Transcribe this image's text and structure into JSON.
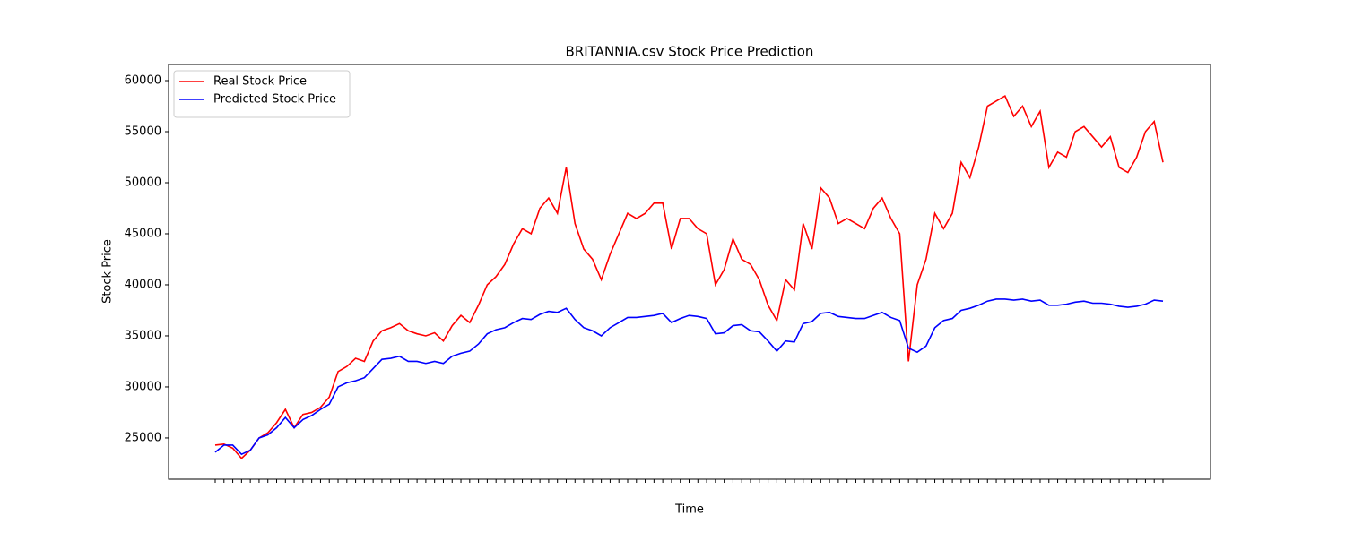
{
  "chart_data": {
    "type": "line",
    "title": "BRITANNIA.csv Stock Price Prediction",
    "x_label": "Time",
    "y_label": "Stock Price",
    "categories": [
      null,
      null,
      null,
      null,
      null,
      null,
      null,
      null,
      null,
      null,
      null,
      null,
      null,
      null,
      null,
      null,
      null,
      null,
      null,
      null,
      null,
      null,
      null,
      null,
      null,
      null,
      null,
      null,
      null,
      null,
      null,
      null,
      null,
      null,
      null,
      null,
      null,
      null,
      null,
      null,
      null,
      null,
      null,
      null,
      null,
      null,
      null,
      null,
      null,
      null,
      null,
      null,
      null,
      null,
      null,
      null,
      null,
      null,
      null,
      null,
      null,
      null,
      null,
      null,
      null,
      null,
      null,
      null,
      null,
      null,
      null,
      null,
      null,
      null,
      null,
      null,
      null,
      null,
      null,
      null,
      null,
      null,
      null,
      null,
      null,
      null,
      null,
      null,
      null,
      null,
      null,
      null,
      null,
      null,
      null,
      null,
      null,
      null,
      null,
      null,
      null,
      null,
      null,
      null,
      null,
      null,
      null,
      null,
      null
    ],
    "series": [
      {
        "name": "Real Stock Price",
        "color": "#ff0000",
        "values": [
          24300,
          24400,
          24000,
          23000,
          23800,
          25000,
          25500,
          26500,
          27800,
          26000,
          27300,
          27500,
          28000,
          29000,
          31500,
          32000,
          32800,
          32500,
          34500,
          35500,
          35800,
          36200,
          35500,
          35200,
          35000,
          35300,
          34500,
          36000,
          37000,
          36300,
          38000,
          40000,
          40800,
          42000,
          44000,
          45500,
          45000,
          47500,
          48500,
          47000,
          51500,
          46000,
          43500,
          42500,
          40500,
          43000,
          45000,
          47000,
          46500,
          47000,
          48000,
          48000,
          43500,
          46500,
          46500,
          45500,
          45000,
          40000,
          41500,
          44500,
          42500,
          42000,
          40500,
          38000,
          36500,
          40500,
          39500,
          46000,
          43500,
          49500,
          48500,
          46000,
          46500,
          46000,
          45500,
          47500,
          48500,
          46500,
          45000,
          32500,
          40000,
          42500,
          47000,
          45500,
          47000,
          52000,
          50500,
          53500,
          57500,
          58000,
          58500,
          56500,
          57500,
          55500,
          57000,
          51500,
          53000,
          52500,
          55000,
          55500,
          54500,
          53500,
          54500,
          51500,
          51000,
          52500,
          55000,
          56000,
          52000
        ]
      },
      {
        "name": "Predicted Stock Price",
        "color": "#0000ff",
        "values": [
          23600,
          24300,
          24300,
          23400,
          23800,
          25000,
          25300,
          26000,
          27000,
          26000,
          26800,
          27200,
          27800,
          28300,
          30000,
          30400,
          30600,
          30900,
          31800,
          32700,
          32800,
          33000,
          32500,
          32500,
          32300,
          32500,
          32300,
          33000,
          33300,
          33500,
          34200,
          35200,
          35600,
          35800,
          36300,
          36700,
          36600,
          37100,
          37400,
          37300,
          37700,
          36600,
          35800,
          35500,
          35000,
          35800,
          36300,
          36800,
          36800,
          36900,
          37000,
          37200,
          36300,
          36700,
          37000,
          36900,
          36700,
          35200,
          35300,
          36000,
          36100,
          35500,
          35400,
          34500,
          33500,
          34500,
          34400,
          36200,
          36400,
          37200,
          37300,
          36900,
          36800,
          36700,
          36700,
          37000,
          37300,
          36800,
          36500,
          33800,
          33400,
          34000,
          35800,
          36500,
          36700,
          37500,
          37700,
          38000,
          38400,
          38600,
          38600,
          38500,
          38600,
          38400,
          38500,
          38000,
          38000,
          38100,
          38300,
          38400,
          38200,
          38200,
          38100,
          37900,
          37800,
          37900,
          38100,
          38500,
          38400
        ]
      }
    ],
    "ylim": [
      20960,
      61580
    ],
    "yticks": [
      25000,
      30000,
      35000,
      40000,
      45000,
      50000,
      55000,
      60000
    ],
    "legend": "upper left"
  }
}
